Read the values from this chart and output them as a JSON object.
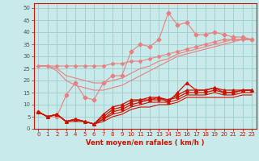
{
  "title": "",
  "xlabel": "Vent moyen/en rafales ( km/h )",
  "ylabel": "",
  "background_color": "#c8eaea",
  "grid_color": "#a0cccc",
  "x_values": [
    0,
    1,
    2,
    3,
    4,
    5,
    6,
    7,
    8,
    9,
    10,
    11,
    12,
    13,
    14,
    15,
    16,
    17,
    18,
    19,
    20,
    21,
    22,
    23
  ],
  "lines": [
    {
      "y": [
        26,
        26,
        26,
        26,
        26,
        26,
        26,
        26,
        27,
        27,
        28,
        28,
        29,
        30,
        31,
        32,
        33,
        34,
        35,
        36,
        37,
        37,
        37,
        37
      ],
      "color": "#e88080",
      "linewidth": 0.8,
      "marker": "D",
      "markersize": 2.0,
      "zorder": 2
    },
    {
      "y": [
        7,
        5,
        5,
        14,
        19,
        13,
        12,
        19,
        22,
        22,
        32,
        35,
        34,
        37,
        48,
        43,
        44,
        39,
        39,
        40,
        39,
        38,
        38,
        37
      ],
      "color": "#e88080",
      "linewidth": 0.8,
      "marker": "D",
      "markersize": 2.5,
      "zorder": 3
    },
    {
      "y": [
        26,
        26,
        24,
        20,
        18,
        17,
        16,
        16,
        17,
        18,
        20,
        22,
        24,
        26,
        28,
        30,
        31,
        32,
        33,
        34,
        35,
        36,
        37,
        37
      ],
      "color": "#e88080",
      "linewidth": 0.8,
      "marker": null,
      "markersize": 0,
      "zorder": 2
    },
    {
      "y": [
        26,
        26,
        25,
        22,
        21,
        20,
        19,
        19,
        20,
        21,
        23,
        25,
        26,
        28,
        29,
        31,
        32,
        33,
        34,
        35,
        36,
        37,
        37,
        37
      ],
      "color": "#e88080",
      "linewidth": 0.8,
      "marker": null,
      "markersize": 0,
      "zorder": 2
    },
    {
      "y": [
        7,
        5,
        6,
        3,
        4,
        3,
        2,
        6,
        9,
        10,
        12,
        12,
        13,
        13,
        11,
        15,
        19,
        16,
        16,
        17,
        16,
        16,
        16,
        16
      ],
      "color": "#cc1100",
      "linewidth": 0.9,
      "marker": "^",
      "markersize": 2.5,
      "zorder": 4
    },
    {
      "y": [
        7,
        5,
        6,
        3,
        4,
        3,
        2,
        5,
        8,
        9,
        11,
        12,
        12,
        13,
        12,
        14,
        16,
        16,
        16,
        17,
        15,
        15,
        16,
        16
      ],
      "color": "#cc1100",
      "linewidth": 0.9,
      "marker": "^",
      "markersize": 2.5,
      "zorder": 4
    },
    {
      "y": [
        7,
        5,
        6,
        3,
        4,
        3,
        2,
        4,
        7,
        8,
        10,
        11,
        12,
        12,
        12,
        13,
        15,
        15,
        15,
        16,
        15,
        15,
        16,
        16
      ],
      "color": "#cc1100",
      "linewidth": 0.9,
      "marker": "^",
      "markersize": 2.0,
      "zorder": 4
    },
    {
      "y": [
        7,
        5,
        6,
        3,
        4,
        3,
        2,
        4,
        6,
        7,
        9,
        10,
        11,
        11,
        11,
        12,
        14,
        14,
        14,
        15,
        14,
        14,
        15,
        15
      ],
      "color": "#cc1100",
      "linewidth": 0.8,
      "marker": null,
      "markersize": 0,
      "zorder": 3
    },
    {
      "y": [
        7,
        5,
        6,
        3,
        3,
        3,
        2,
        3,
        5,
        6,
        8,
        9,
        9,
        10,
        10,
        11,
        13,
        13,
        13,
        13,
        13,
        13,
        14,
        14
      ],
      "color": "#cc1100",
      "linewidth": 0.8,
      "marker": null,
      "markersize": 0,
      "zorder": 3
    }
  ],
  "yticks": [
    0,
    5,
    10,
    15,
    20,
    25,
    30,
    35,
    40,
    45,
    50
  ],
  "ylim": [
    0,
    52
  ],
  "xlim": [
    -0.5,
    23.5
  ],
  "tick_fontsize": 5.0,
  "xlabel_fontsize": 6.0
}
